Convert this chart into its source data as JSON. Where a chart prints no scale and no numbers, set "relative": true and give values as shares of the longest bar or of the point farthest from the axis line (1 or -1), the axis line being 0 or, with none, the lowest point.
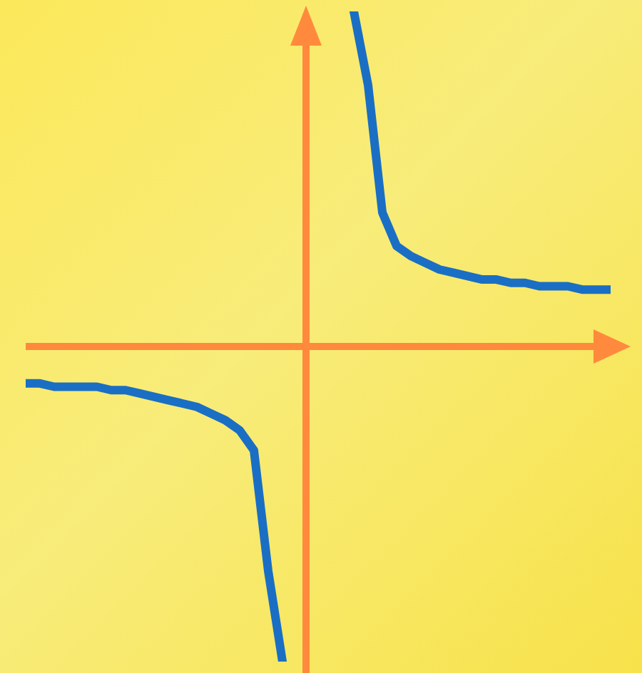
{
  "chart_data": {
    "type": "line",
    "relative": true,
    "marker": "none",
    "line_style": "solid",
    "ref_lines": [
      {
        "axis": "y",
        "value": 0,
        "color": "#ff8a3d"
      }
    ],
    "categories": [
      null,
      null,
      null,
      null,
      null,
      null,
      null,
      null,
      null,
      null,
      null,
      null,
      null,
      null,
      null,
      null,
      null,
      null,
      null,
      null,
      null,
      null,
      null,
      null,
      null,
      null,
      null,
      null,
      null,
      null,
      null,
      null,
      null,
      null,
      null,
      null,
      null,
      null,
      null,
      null,
      null,
      null
    ],
    "series": [
      {
        "color": "#1a6fc4",
        "values": [
          null,
          null,
          null,
          null,
          null,
          null,
          null,
          null,
          null,
          null,
          null,
          null,
          null,
          null,
          null,
          null,
          null,
          null,
          null,
          null,
          null,
          null,
          null,
          1,
          0.78,
          0.4,
          0.3,
          0.27,
          0.25,
          0.23,
          0.22,
          0.21,
          0.2,
          0.2,
          0.19,
          0.19,
          0.18,
          0.18,
          0.18,
          0.17,
          0.17,
          0.17
        ]
      },
      {
        "color": "#1a6fc4",
        "values": [
          -0.11,
          -0.11,
          -0.12,
          -0.12,
          -0.12,
          -0.12,
          -0.13,
          -0.13,
          -0.14,
          -0.15,
          -0.16,
          -0.17,
          -0.18,
          -0.2,
          -0.22,
          -0.25,
          -0.31,
          -0.67,
          -0.94,
          null,
          null,
          null,
          null,
          null,
          null,
          null,
          null,
          null,
          null,
          null,
          null,
          null,
          null,
          null,
          null,
          null,
          null,
          null,
          null,
          null,
          null,
          null
        ]
      }
    ]
  }
}
